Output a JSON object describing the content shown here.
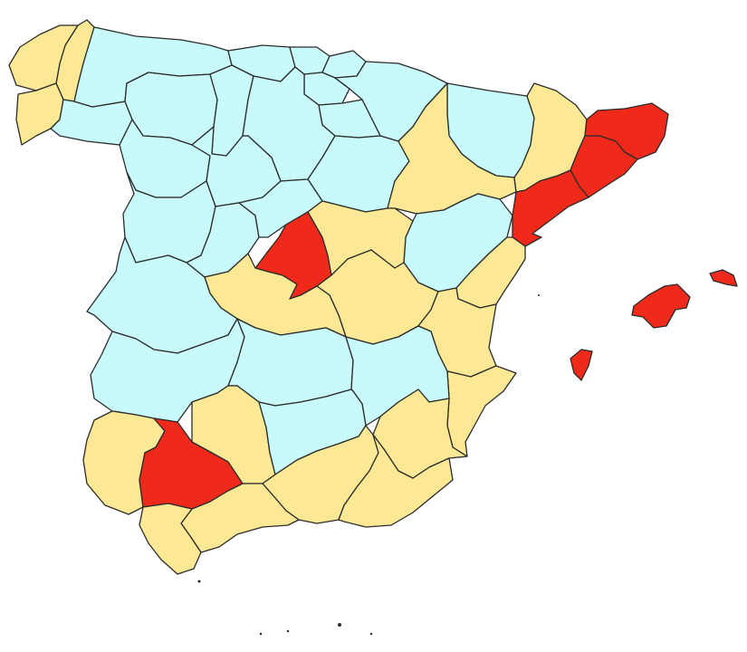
{
  "map": {
    "type": "choropleth",
    "region": "Spain provinces",
    "colors": {
      "light_blue": "#c8fafc",
      "yellow": "#fde995",
      "red": "#ef2a1a",
      "border": "#2b2b2b",
      "background": "#ffffff"
    },
    "provinces": [
      {
        "id": "a-coruna",
        "class": "yellow"
      },
      {
        "id": "lugo",
        "class": "yellow"
      },
      {
        "id": "pontevedra",
        "class": "yellow"
      },
      {
        "id": "ourense",
        "class": "light_blue"
      },
      {
        "id": "asturias",
        "class": "light_blue"
      },
      {
        "id": "cantabria",
        "class": "light_blue"
      },
      {
        "id": "bizkaia",
        "class": "light_blue"
      },
      {
        "id": "gipuzkoa",
        "class": "light_blue"
      },
      {
        "id": "araba",
        "class": "light_blue"
      },
      {
        "id": "navarra",
        "class": "light_blue"
      },
      {
        "id": "la-rioja",
        "class": "light_blue"
      },
      {
        "id": "leon",
        "class": "light_blue"
      },
      {
        "id": "palencia",
        "class": "light_blue"
      },
      {
        "id": "burgos",
        "class": "light_blue"
      },
      {
        "id": "zamora",
        "class": "light_blue"
      },
      {
        "id": "valladolid",
        "class": "light_blue"
      },
      {
        "id": "soria",
        "class": "light_blue"
      },
      {
        "id": "salamanca",
        "class": "light_blue"
      },
      {
        "id": "avila",
        "class": "light_blue"
      },
      {
        "id": "segovia",
        "class": "light_blue"
      },
      {
        "id": "huesca",
        "class": "light_blue"
      },
      {
        "id": "zaragoza",
        "class": "yellow"
      },
      {
        "id": "teruel",
        "class": "light_blue"
      },
      {
        "id": "lleida",
        "class": "yellow"
      },
      {
        "id": "girona",
        "class": "red"
      },
      {
        "id": "barcelona",
        "class": "red"
      },
      {
        "id": "tarragona",
        "class": "red"
      },
      {
        "id": "madrid",
        "class": "red"
      },
      {
        "id": "guadalajara",
        "class": "yellow"
      },
      {
        "id": "cuenca",
        "class": "yellow"
      },
      {
        "id": "toledo",
        "class": "yellow"
      },
      {
        "id": "castellon",
        "class": "yellow"
      },
      {
        "id": "valencia",
        "class": "yellow"
      },
      {
        "id": "alicante",
        "class": "yellow"
      },
      {
        "id": "caceres",
        "class": "light_blue"
      },
      {
        "id": "badajoz",
        "class": "light_blue"
      },
      {
        "id": "ciudad-real",
        "class": "light_blue"
      },
      {
        "id": "albacete",
        "class": "light_blue"
      },
      {
        "id": "murcia",
        "class": "yellow"
      },
      {
        "id": "huelva",
        "class": "yellow"
      },
      {
        "id": "sevilla",
        "class": "red"
      },
      {
        "id": "cordoba",
        "class": "yellow"
      },
      {
        "id": "jaen",
        "class": "light_blue"
      },
      {
        "id": "granada",
        "class": "yellow"
      },
      {
        "id": "almeria",
        "class": "yellow"
      },
      {
        "id": "malaga",
        "class": "yellow"
      },
      {
        "id": "cadiz",
        "class": "yellow"
      },
      {
        "id": "mallorca",
        "class": "red"
      },
      {
        "id": "menorca",
        "class": "red"
      },
      {
        "id": "ibiza",
        "class": "red"
      }
    ]
  }
}
